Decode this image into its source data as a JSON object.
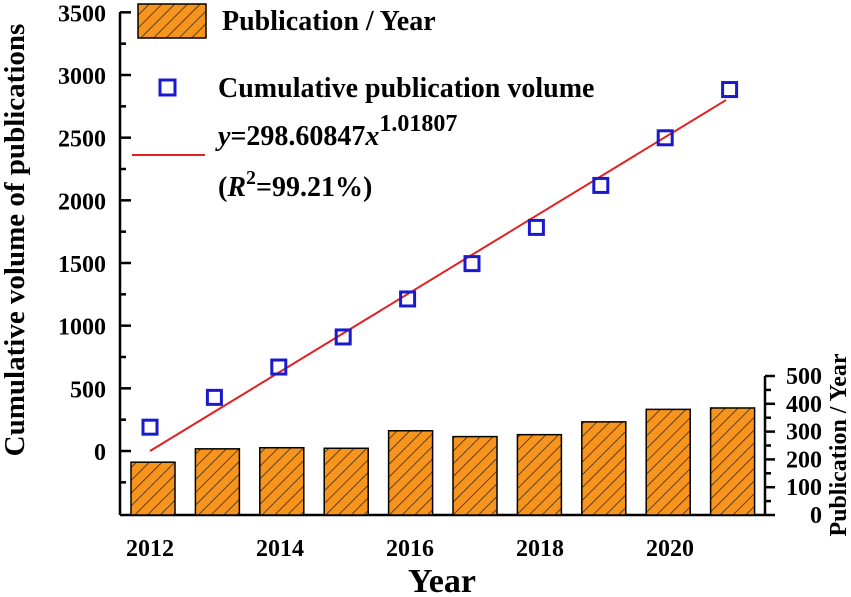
{
  "chart_data": {
    "type": "bar",
    "xlabel": "Year",
    "ylabel": "Cumulative volume of publications",
    "y2label": "Publication / Year",
    "x_ticks": [
      "2012",
      "2014",
      "2016",
      "2018",
      "2020"
    ],
    "ylim": [
      -500,
      3500
    ],
    "y_ticks": [
      0,
      500,
      1000,
      1500,
      2000,
      2500,
      3000,
      3500
    ],
    "y2lim": [
      0,
      500
    ],
    "y2_ticks": [
      0,
      100,
      200,
      300,
      400,
      500
    ],
    "series": [
      {
        "name": "Publication / Year",
        "type": "bar",
        "axis": "right",
        "color": "#f7941d",
        "hatch": true,
        "x": [
          2012,
          2013,
          2014,
          2015,
          2016,
          2017,
          2018,
          2019,
          2020,
          2021
        ],
        "values": [
          190,
          238,
          242,
          240,
          303,
          282,
          289,
          335,
          380,
          385
        ]
      },
      {
        "name": "Cumulative publication volume",
        "type": "scatter",
        "axis": "left",
        "color": "#1a1acc",
        "marker": "open-square",
        "x": [
          2012,
          2013,
          2014,
          2015,
          2016,
          2017,
          2018,
          2019,
          2020,
          2021
        ],
        "values": [
          190,
          428,
          670,
          910,
          1213,
          1495,
          1784,
          2119,
          2499,
          2884
        ]
      },
      {
        "name": "fit",
        "type": "line",
        "axis": "left",
        "color": "#e32020",
        "x": [
          2012,
          2021
        ],
        "values": [
          0,
          2800
        ]
      }
    ],
    "legend": {
      "position": "top-left",
      "bar_label": "Publication / Year",
      "scatter_label": "Cumulative publication volume",
      "fit_eq_prefix": "y",
      "fit_eq_main": "=298.60847",
      "fit_eq_var": "x",
      "fit_eq_exp": "1.01807",
      "r2_open": "(",
      "r2_var": "R",
      "r2_sup": "2",
      "r2_value": "=99.21%)"
    }
  }
}
